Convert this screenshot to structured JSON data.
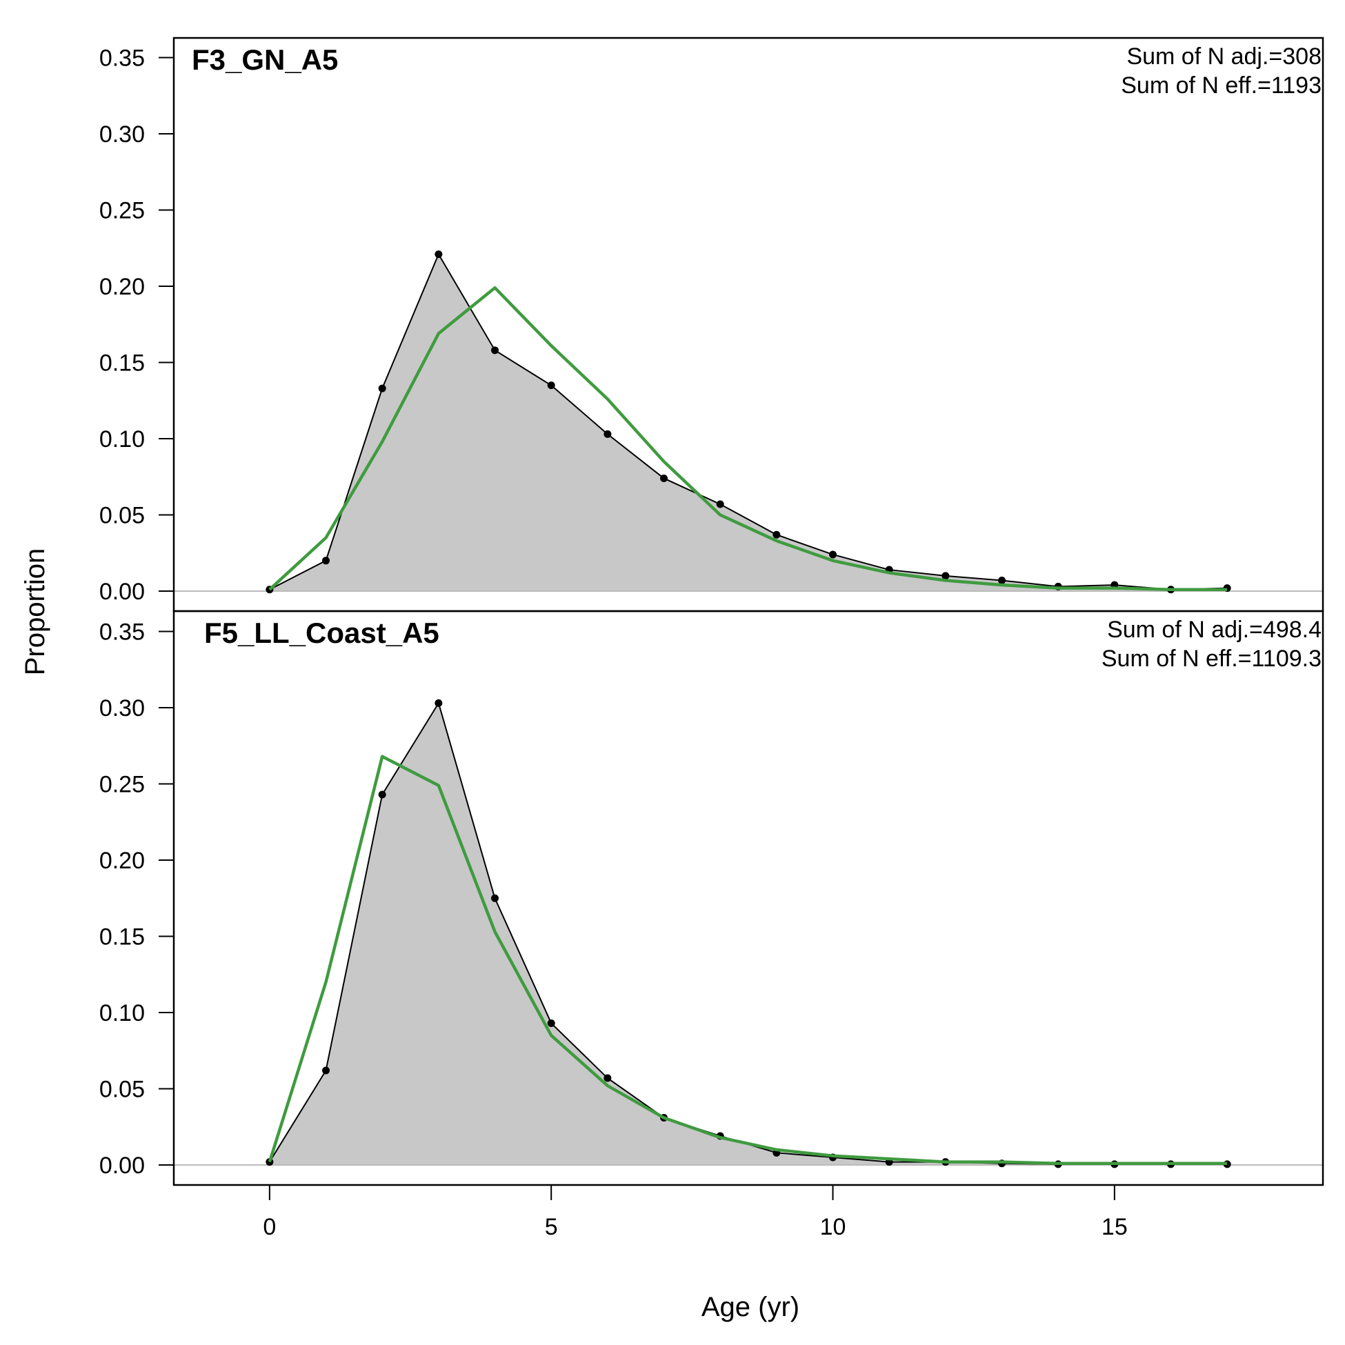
{
  "chart_data": {
    "type": "area",
    "xlabel": "Age (yr)",
    "ylabel": "Proportion",
    "xlim": [
      -1.7,
      18.7
    ],
    "ylim": [
      0,
      0.35
    ],
    "x_ticks": [
      "0",
      "5",
      "10",
      "15"
    ],
    "y_ticks": [
      "0.00",
      "0.05",
      "0.10",
      "0.15",
      "0.20",
      "0.25",
      "0.30",
      "0.35"
    ],
    "grid": false,
    "legend": "none",
    "colors": {
      "observed_fill": "#c8c8c8",
      "observed_line": "#000000",
      "expected_line": "#3f9b3f",
      "zero_line": "#bbbbbb"
    },
    "panels": [
      {
        "title": "F3_GN_A5",
        "annotations": [
          "Sum of N adj.=308",
          "Sum of N eff.=1193"
        ],
        "x": [
          0,
          1,
          2,
          3,
          4,
          5,
          6,
          7,
          8,
          9,
          10,
          11,
          12,
          13,
          14,
          15,
          16,
          17
        ],
        "series": [
          {
            "values": [
              0.001,
              0.02,
              0.133,
              0.221,
              0.158,
              0.135,
              0.103,
              0.074,
              0.057,
              0.037,
              0.024,
              0.014,
              0.01,
              0.007,
              0.003,
              0.004,
              0.001,
              0.002
            ]
          },
          {
            "values": [
              0.001,
              0.035,
              0.098,
              0.169,
              0.199,
              0.161,
              0.126,
              0.085,
              0.05,
              0.033,
              0.02,
              0.012,
              0.007,
              0.004,
              0.002,
              0.002,
              0.001,
              0.001
            ]
          }
        ]
      },
      {
        "title": "F5_LL_Coast_A5",
        "annotations": [
          "Sum of N adj.=498.4",
          "Sum of N eff.=1109.3"
        ],
        "x": [
          0,
          1,
          2,
          3,
          4,
          5,
          6,
          7,
          8,
          9,
          10,
          11,
          12,
          13,
          14,
          15,
          16,
          17
        ],
        "series": [
          {
            "values": [
              0.002,
              0.062,
              0.243,
              0.303,
              0.175,
              0.093,
              0.057,
              0.031,
              0.019,
              0.008,
              0.005,
              0.002,
              0.002,
              0.001,
              0.0005,
              0.0005,
              0.0005,
              0.0005
            ]
          },
          {
            "values": [
              0.002,
              0.12,
              0.268,
              0.249,
              0.153,
              0.085,
              0.052,
              0.031,
              0.018,
              0.01,
              0.006,
              0.004,
              0.002,
              0.002,
              0.001,
              0.001,
              0.001,
              0.001
            ]
          }
        ]
      }
    ]
  }
}
